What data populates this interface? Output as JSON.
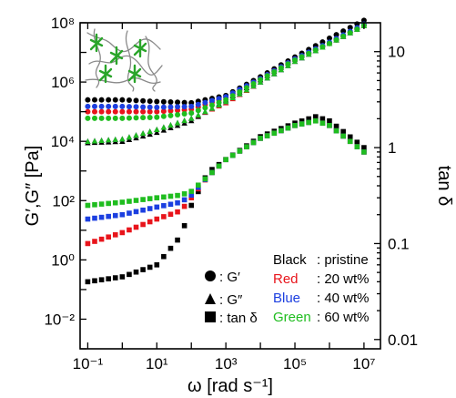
{
  "chart_data": {
    "type": "scatter",
    "xlabel": "ω [rad s⁻¹]",
    "ylabel_left": "G′,G″ [Pa]",
    "ylabel_right": "tan δ",
    "x_scale": "log",
    "y_left_scale": "log",
    "y_right_scale": "log",
    "xlim": [
      0.06,
      30000000
    ],
    "ylim_left": [
      0.001,
      100000000
    ],
    "ylim_right": [
      0.008,
      20
    ],
    "x_ticks": [
      "10⁻¹",
      "10¹",
      "10³",
      "10⁵",
      "10⁷"
    ],
    "y_left_ticks": [
      "10⁻²",
      "10⁰",
      "10²",
      "10⁴",
      "10⁶",
      "10⁸"
    ],
    "y_right_ticks": [
      "0.01",
      "0.1",
      "1",
      "10"
    ],
    "grid": false,
    "marker_legend": [
      {
        "symbol": "circle",
        "label": ": G′"
      },
      {
        "symbol": "triangle",
        "label": ": G″"
      },
      {
        "symbol": "square",
        "label": ": tan δ"
      }
    ],
    "color_legend": [
      {
        "color_name": "Black",
        "desc": ": pristine",
        "hex": "#000000"
      },
      {
        "color_name": "Red",
        "desc": ": 20 wt%",
        "hex": "#e8141b"
      },
      {
        "color_name": "Blue",
        "desc": ": 40 wt%",
        "hex": "#1c3fe0"
      },
      {
        "color_name": "Green",
        "desc": ": 60 wt%",
        "hex": "#1fbd1f"
      }
    ],
    "series": [
      {
        "name": "pristine",
        "color": "#000000",
        "Gp_x": [
          0.1,
          1,
          10,
          100,
          1000,
          10000,
          100000,
          1000000,
          10000000
        ],
        "Gp_y": [
          250000,
          250000,
          220000,
          200000,
          350000,
          1500000,
          7000000,
          30000000,
          120000000
        ],
        "Gpp_x": [
          0.1,
          1,
          10,
          100,
          1000,
          10000,
          100000,
          1000000,
          10000000
        ],
        "Gpp_y": [
          9000,
          10000,
          20000,
          50000,
          250000,
          1200000,
          6000000,
          25000000,
          100000000
        ],
        "tan_x": [
          0.1,
          1,
          10,
          50,
          100,
          300,
          1000,
          10000,
          100000,
          400000,
          1000000,
          10000000
        ],
        "tan_y": [
          0.04,
          0.045,
          0.06,
          0.12,
          0.25,
          0.55,
          0.75,
          1.3,
          1.8,
          2.1,
          1.9,
          1.0
        ]
      },
      {
        "name": "20 wt%",
        "color": "#e8141b",
        "Gp_x": [
          0.1,
          1,
          10,
          100,
          1000,
          10000,
          100000,
          1000000,
          10000000
        ],
        "Gp_y": [
          100000,
          100000,
          100000,
          120000,
          300000,
          1300000,
          6000000,
          20000000,
          80000000
        ],
        "Gpp_x": [
          0.1,
          1,
          10,
          100,
          1000,
          10000,
          100000,
          1000000,
          10000000
        ],
        "Gpp_y": [
          10000,
          12000,
          25000,
          60000,
          200000,
          1000000,
          5000000,
          20000000,
          80000000
        ],
        "tan_x": [
          0.1,
          1,
          10,
          50,
          100,
          300,
          1000,
          10000,
          100000,
          400000,
          1000000,
          10000000
        ],
        "tan_y": [
          0.1,
          0.13,
          0.18,
          0.22,
          0.3,
          0.5,
          0.75,
          1.25,
          1.7,
          1.9,
          1.7,
          0.9
        ]
      },
      {
        "name": "40 wt%",
        "color": "#1c3fe0",
        "Gp_x": [
          0.1,
          1,
          10,
          100,
          1000,
          10000,
          100000,
          1000000,
          10000000
        ],
        "Gp_y": [
          150000,
          150000,
          140000,
          150000,
          320000,
          1300000,
          6000000,
          22000000,
          90000000
        ],
        "Gpp_x": [
          0.1,
          1,
          10,
          100,
          1000,
          10000,
          100000,
          1000000,
          10000000
        ],
        "Gpp_y": [
          10000,
          12000,
          25000,
          60000,
          220000,
          1000000,
          5000000,
          20000000,
          80000000
        ],
        "tan_x": [
          0.1,
          1,
          10,
          50,
          100,
          300,
          1000,
          10000,
          100000,
          400000,
          1000000,
          10000000
        ],
        "tan_y": [
          0.18,
          0.2,
          0.24,
          0.27,
          0.32,
          0.5,
          0.75,
          1.25,
          1.7,
          1.9,
          1.7,
          0.9
        ]
      },
      {
        "name": "60 wt%",
        "color": "#1fbd1f",
        "Gp_x": [
          0.1,
          1,
          10,
          100,
          1000,
          10000,
          100000,
          1000000,
          10000000
        ],
        "Gp_y": [
          60000,
          60000,
          65000,
          90000,
          250000,
          1200000,
          5500000,
          20000000,
          80000000
        ],
        "Gpp_x": [
          0.1,
          1,
          10,
          100,
          1000,
          10000,
          100000,
          1000000,
          10000000
        ],
        "Gpp_y": [
          10000,
          12000,
          25000,
          60000,
          220000,
          1000000,
          5000000,
          20000000,
          80000000
        ],
        "tan_x": [
          0.1,
          1,
          10,
          50,
          100,
          300,
          1000,
          10000,
          100000,
          400000,
          1000000,
          10000000
        ],
        "tan_y": [
          0.25,
          0.27,
          0.3,
          0.32,
          0.35,
          0.5,
          0.75,
          1.25,
          1.7,
          1.9,
          1.7,
          0.9
        ]
      }
    ]
  }
}
